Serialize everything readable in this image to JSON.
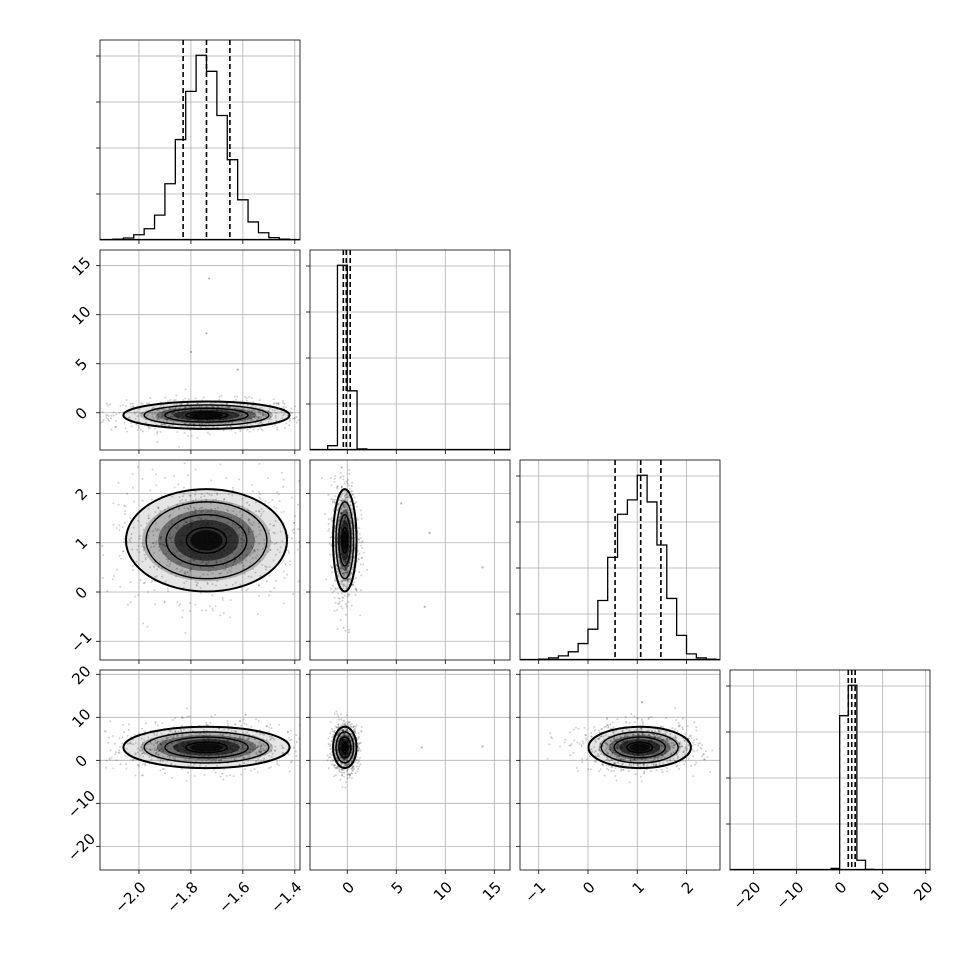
{
  "chart_data": {
    "type": "corner",
    "title": "",
    "grid": true,
    "parameters": [
      {
        "name": "",
        "range": [
          -2.15,
          -1.38
        ],
        "ticks": [
          -2.0,
          -1.8,
          -1.6,
          -1.4
        ],
        "tick_labels": [
          "−2.0",
          "−1.8",
          "−1.6",
          "−1.4"
        ]
      },
      {
        "name": "",
        "range": [
          -3.8,
          16.6
        ],
        "ticks": [
          0,
          5,
          10,
          15
        ],
        "tick_labels": [
          "0",
          "5",
          "10",
          "15"
        ]
      },
      {
        "name": "",
        "range": [
          -1.38,
          2.68
        ],
        "ticks": [
          -1,
          0,
          1,
          2
        ],
        "tick_labels": [
          "−1",
          "0",
          "1",
          "2"
        ]
      },
      {
        "name": "",
        "range": [
          -25.5,
          21.0
        ],
        "ticks": [
          -20,
          -10,
          0,
          10,
          20
        ],
        "tick_labels": [
          "−20",
          "−10",
          "0",
          "10",
          "20"
        ]
      }
    ],
    "histograms": [
      {
        "param": 0,
        "bin_edges": [
          -2.1,
          -2.06,
          -2.02,
          -1.98,
          -1.94,
          -1.9,
          -1.86,
          -1.82,
          -1.78,
          -1.74,
          -1.7,
          -1.66,
          -1.62,
          -1.58,
          -1.54,
          -1.5,
          -1.46,
          -1.42
        ],
        "counts": [
          2,
          5,
          13,
          28,
          62,
          140,
          250,
          370,
          460,
          420,
          310,
          200,
          100,
          45,
          18,
          6,
          2
        ],
        "quantiles": [
          -1.83,
          -1.74,
          -1.65
        ]
      },
      {
        "param": 1,
        "bin_edges": [
          -2.0,
          -1.0,
          0.0,
          1.0,
          2.0,
          3.0
        ],
        "counts": [
          15,
          640,
          205,
          4,
          1
        ],
        "quantiles": [
          -0.4,
          -0.1,
          0.3
        ]
      },
      {
        "param": 2,
        "bin_edges": [
          -1.0,
          -0.8,
          -0.6,
          -0.4,
          -0.2,
          0.0,
          0.2,
          0.4,
          0.6,
          0.8,
          1.0,
          1.2,
          1.4,
          1.6,
          1.8,
          2.0,
          2.2,
          2.4,
          2.6
        ],
        "counts": [
          2,
          5,
          10,
          20,
          40,
          75,
          145,
          250,
          355,
          390,
          450,
          385,
          280,
          150,
          60,
          15,
          5,
          2
        ],
        "quantiles": [
          0.55,
          1.07,
          1.48
        ]
      },
      {
        "param": 3,
        "bin_edges": [
          -2.0,
          0.0,
          2.0,
          4.0,
          6.0,
          8.0
        ],
        "counts": [
          8,
          760,
          910,
          48,
          3
        ],
        "quantiles": [
          2.0,
          2.8,
          3.6
        ]
      }
    ],
    "contours": [
      {
        "row": 1,
        "col": 0,
        "center": [
          -1.74,
          -0.25
        ],
        "spread": [
          0.16,
          0.7
        ],
        "rotation": 0
      },
      {
        "row": 2,
        "col": 0,
        "center": [
          -1.74,
          1.05
        ],
        "spread": [
          0.155,
          0.52
        ],
        "rotation": 0
      },
      {
        "row": 2,
        "col": 1,
        "center": [
          -0.25,
          1.05
        ],
        "spread": [
          0.6,
          0.52
        ],
        "rotation": 0
      },
      {
        "row": 3,
        "col": 0,
        "center": [
          -1.74,
          3.0
        ],
        "spread": [
          0.16,
          2.4
        ],
        "rotation": 0
      },
      {
        "row": 3,
        "col": 1,
        "center": [
          -0.25,
          3.0
        ],
        "spread": [
          0.6,
          2.4
        ],
        "rotation": 0
      },
      {
        "row": 3,
        "col": 2,
        "center": [
          1.05,
          3.0
        ],
        "spread": [
          0.52,
          2.4
        ],
        "rotation": 0
      }
    ],
    "contour_levels_sigma": [
      0.5,
      1.0,
      1.5,
      2.0
    ],
    "outlier_points": [
      {
        "row": 1,
        "col": 0,
        "points": [
          [
            -1.73,
            13.7
          ],
          [
            -1.74,
            8.1
          ],
          [
            -1.62,
            4.4
          ],
          [
            -1.8,
            6.2
          ]
        ]
      },
      {
        "row": 2,
        "col": 1,
        "points": [
          [
            7.9,
            -0.3
          ],
          [
            13.8,
            0.5
          ],
          [
            5.5,
            1.8
          ],
          [
            8.4,
            1.2
          ]
        ]
      },
      {
        "row": 3,
        "col": 1,
        "points": [
          [
            7.6,
            3.0
          ],
          [
            13.8,
            3.2
          ],
          [
            -0.1,
            8.0
          ]
        ]
      },
      {
        "row": 3,
        "col": 2,
        "points": [
          [
            1.1,
            13.5
          ]
        ]
      }
    ],
    "colors": {
      "line": "#000000",
      "grid": "#b0b0b0",
      "scatter": "#000000",
      "quantile": "#000000"
    }
  }
}
